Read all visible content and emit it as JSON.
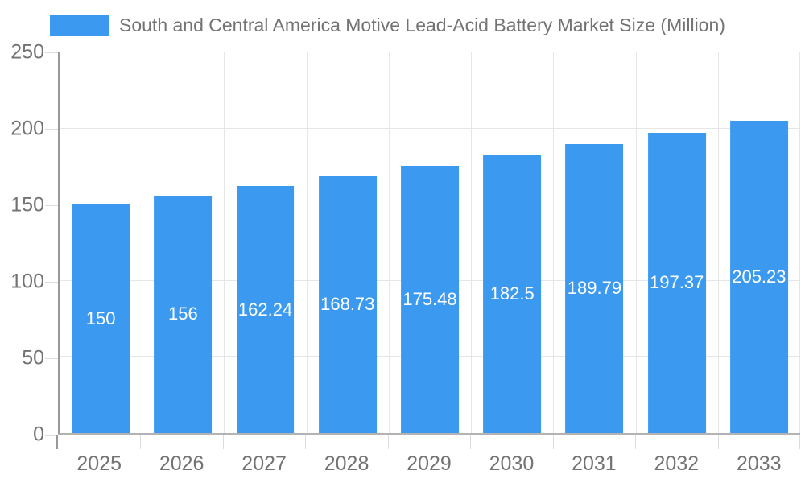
{
  "legend": {
    "items": [
      {
        "label": "South and Central America Motive Lead-Acid Battery Market Size (Million)",
        "color": "#3b99f0"
      }
    ]
  },
  "chart_data": {
    "type": "bar",
    "title": "South and Central America Motive Lead-Acid Battery Market Size (Million)",
    "categories": [
      "2025",
      "2026",
      "2027",
      "2028",
      "2029",
      "2030",
      "2031",
      "2032",
      "2033"
    ],
    "series": [
      {
        "name": "South and Central America Motive Lead-Acid Battery Market Size (Million)",
        "values": [
          150,
          156,
          162.24,
          168.73,
          175.48,
          182.5,
          189.79,
          197.37,
          205.23
        ]
      }
    ],
    "value_labels": [
      "150",
      "156",
      "162.24",
      "168.73",
      "175.48",
      "182.5",
      "189.79",
      "197.37",
      "205.23"
    ],
    "xlabel": "",
    "ylabel": "",
    "ylim": [
      0,
      250
    ],
    "yticks": [
      0,
      50,
      100,
      150,
      200,
      250
    ],
    "grid": true,
    "legend_position": "top-left",
    "bar_color": "#3b99f0",
    "value_label_color": "#ffffff",
    "axis_text_color": "#737373",
    "gridline_color": "#e6e6e6"
  }
}
